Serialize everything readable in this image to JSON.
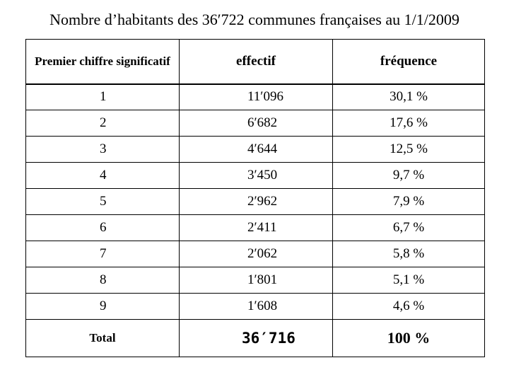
{
  "title": "Nombre d’habitants des 36′722 communes françaises au 1/1/2009",
  "headers": {
    "first_digit": "Premier chiffre significatif",
    "count": "effectif",
    "frequency": "fréquence"
  },
  "rows": [
    {
      "digit": "1",
      "count": "11′096",
      "frequency": "30,1 %"
    },
    {
      "digit": "2",
      "count": "6′682",
      "frequency": "17,6 %"
    },
    {
      "digit": "3",
      "count": "4′644",
      "frequency": "12,5 %"
    },
    {
      "digit": "4",
      "count": "3′450",
      "frequency": "9,7 %"
    },
    {
      "digit": "5",
      "count": "2′962",
      "frequency": "7,9 %"
    },
    {
      "digit": "6",
      "count": "2′411",
      "frequency": "6,7 %"
    },
    {
      "digit": "7",
      "count": "2′062",
      "frequency": "5,8 %"
    },
    {
      "digit": "8",
      "count": "1′801",
      "frequency": "5,1 %"
    },
    {
      "digit": "9",
      "count": "1′608",
      "frequency": "4,6 %"
    }
  ],
  "total": {
    "label": "Total",
    "count": "36′716",
    "frequency": "100 %"
  }
}
